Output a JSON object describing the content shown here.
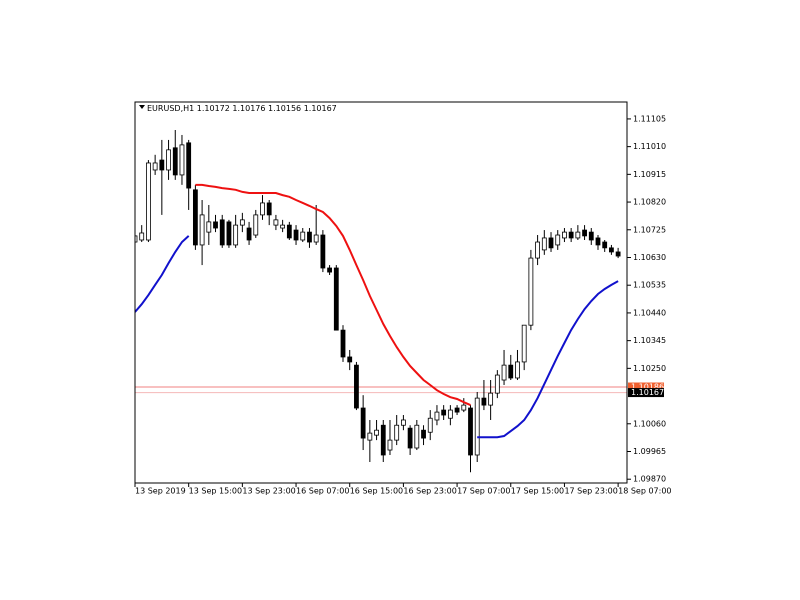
{
  "chart_data": {
    "type": "candlestick",
    "title": "EURUSD,H1",
    "header_values": [
      1.10172,
      1.10176,
      1.10156,
      1.10167
    ],
    "categories": [
      "13 Sep 2019",
      null,
      null,
      null,
      null,
      null,
      null,
      null,
      "13 Sep 15:00",
      null,
      null,
      null,
      null,
      null,
      null,
      null,
      "13 Sep 23:00",
      null,
      null,
      null,
      null,
      null,
      null,
      null,
      "16 Sep 07:00",
      null,
      null,
      null,
      null,
      null,
      null,
      null,
      "16 Sep 15:00",
      null,
      null,
      null,
      null,
      null,
      null,
      null,
      "16 Sep 23:00",
      null,
      null,
      null,
      null,
      null,
      null,
      null,
      "17 Sep 07:00",
      null,
      null,
      null,
      null,
      null,
      null,
      null,
      "17 Sep 15:00",
      null,
      null,
      null,
      null,
      null,
      null,
      null,
      "17 Sep 23:00",
      null,
      null,
      null,
      null,
      null,
      null,
      null,
      "18 Sep 07:00"
    ],
    "open": [
      1.10683,
      1.1069,
      1.1069,
      1.1093,
      1.10964,
      1.1093,
      1.11006,
      1.10913,
      1.11023,
      1.10862,
      1.10673,
      1.10717,
      1.10752,
      1.10759,
      1.10752,
      1.10673,
      1.10741,
      1.10731,
      1.10707,
      1.10776,
      1.10817,
      1.10741,
      1.10731,
      1.10741,
      1.10724,
      1.1069,
      1.10717,
      1.10683,
      1.10707,
      1.10594,
      1.10594,
      1.10381,
      1.10289,
      1.10261,
      1.10114,
      1.10004,
      1.10021,
      1.10055,
      1.0997,
      1.10004,
      1.10055,
      1.10045,
      1.09977,
      1.10038,
      1.10031,
      1.10073,
      1.10107,
      1.10079,
      1.10114,
      1.10107,
      1.10114,
      1.09953,
      1.10148,
      1.10124,
      1.10165,
      1.1021,
      1.10261,
      1.10217,
      1.10272,
      1.10398,
      1.10628,
      1.10656,
      1.10697,
      1.10673,
      1.10697,
      1.10717,
      1.10697,
      1.10724,
      1.10717,
      1.10697,
      1.10683,
      1.10663,
      1.10649
    ],
    "high": [
      1.10717,
      1.10741,
      1.10964,
      1.10982,
      1.11033,
      1.11033,
      1.11067,
      1.1105,
      1.11033,
      1.10879,
      1.10827,
      1.1081,
      1.10776,
      1.10776,
      1.10759,
      1.10776,
      1.10783,
      1.10752,
      1.10793,
      1.10844,
      1.10827,
      1.10776,
      1.10759,
      1.10752,
      1.10741,
      1.10731,
      1.10731,
      1.1081,
      1.10724,
      1.10604,
      1.10604,
      1.10398,
      1.10313,
      1.10272,
      1.10158,
      1.10073,
      1.10073,
      1.10073,
      1.10073,
      1.1009,
      1.1009,
      1.10055,
      1.10073,
      1.10055,
      1.10107,
      1.10124,
      1.10124,
      1.10124,
      1.10124,
      1.10148,
      1.10124,
      1.10169,
      1.1021,
      1.1021,
      1.10244,
      1.10313,
      1.10296,
      1.10313,
      1.10398,
      1.10656,
      1.10707,
      1.10724,
      1.10717,
      1.10724,
      1.10731,
      1.10731,
      1.10741,
      1.10741,
      1.10731,
      1.10707,
      1.1069,
      1.10673,
      1.10663
    ],
    "low": [
      1.10673,
      1.10683,
      1.10683,
      1.10913,
      1.10776,
      1.10896,
      1.10896,
      1.10879,
      1.10793,
      1.10656,
      1.10604,
      1.10673,
      1.10717,
      1.10663,
      1.10663,
      1.10663,
      1.10717,
      1.10673,
      1.10697,
      1.10759,
      1.10741,
      1.10724,
      1.10717,
      1.1069,
      1.10673,
      1.10683,
      1.10663,
      1.10673,
      1.1058,
      1.1057,
      1.10381,
      1.10272,
      1.10244,
      1.10107,
      1.0997,
      1.09929,
      1.10004,
      1.09929,
      1.09953,
      1.09987,
      1.10038,
      1.09953,
      1.0997,
      1.09987,
      1.10004,
      1.10055,
      1.10073,
      1.10055,
      1.1009,
      1.101,
      1.09894,
      1.09929,
      1.10107,
      1.10073,
      1.10148,
      1.10193,
      1.1021,
      1.1021,
      1.10244,
      1.10381,
      1.10604,
      1.10639,
      1.10649,
      1.10656,
      1.10683,
      1.10683,
      1.1069,
      1.1069,
      1.10673,
      1.10656,
      1.10649,
      1.10639,
      1.10628
    ],
    "close": [
      1.10704,
      1.10714,
      1.10954,
      1.10954,
      1.1093,
      1.10999,
      1.10913,
      1.11016,
      1.10868,
      1.10673,
      1.10776,
      1.10752,
      1.10731,
      1.10673,
      1.10673,
      1.10741,
      1.10759,
      1.1069,
      1.10776,
      1.10817,
      1.10776,
      1.10759,
      1.10741,
      1.10697,
      1.1069,
      1.10717,
      1.10683,
      1.10707,
      1.10594,
      1.1058,
      1.10381,
      1.10289,
      1.10272,
      1.10114,
      1.10011,
      1.10028,
      1.10038,
      1.09953,
      1.10004,
      1.10055,
      1.10073,
      1.09977,
      1.10055,
      1.10011,
      1.10079,
      1.101,
      1.1009,
      1.10107,
      1.101,
      1.10124,
      1.09953,
      1.10148,
      1.10124,
      1.10165,
      1.10227,
      1.10261,
      1.10217,
      1.10272,
      1.10398,
      1.10628,
      1.10683,
      1.10697,
      1.10663,
      1.10707,
      1.10717,
      1.10697,
      1.10717,
      1.10704,
      1.1069,
      1.10673,
      1.10663,
      1.10649,
      1.10635
    ],
    "lines": [
      {
        "color": "#ee1111",
        "values": [
          null,
          null,
          null,
          null,
          null,
          null,
          null,
          null,
          null,
          1.10879,
          1.10879,
          1.10875,
          1.10872,
          1.10868,
          1.10865,
          1.10862,
          1.10855,
          1.10851,
          1.10851,
          1.10851,
          1.10851,
          1.10851,
          1.10844,
          1.10838,
          1.10827,
          1.10817,
          1.10807,
          1.10796,
          1.10786,
          1.10765,
          1.10738,
          1.10704,
          1.10656,
          1.10604,
          1.10553,
          1.10498,
          1.1045,
          1.10402,
          1.10361,
          1.10323,
          1.10289,
          1.10258,
          1.10234,
          1.1021,
          1.10193,
          1.10175,
          1.10162,
          1.10151,
          1.10145,
          1.10134,
          1.10124,
          null,
          null,
          null,
          null,
          null,
          null,
          null,
          null,
          null,
          null,
          null,
          null,
          null,
          null,
          null,
          null,
          null,
          null,
          null,
          null,
          null,
          null
        ]
      },
      {
        "color": "#1111cc",
        "values": [
          1.10443,
          1.1047,
          1.10501,
          1.10536,
          1.1057,
          1.10611,
          1.10649,
          1.10683,
          1.10704,
          null,
          null,
          null,
          null,
          null,
          null,
          null,
          null,
          null,
          null,
          null,
          null,
          null,
          null,
          null,
          null,
          null,
          null,
          null,
          null,
          null,
          null,
          null,
          null,
          null,
          null,
          null,
          null,
          null,
          null,
          null,
          null,
          null,
          null,
          null,
          null,
          null,
          null,
          null,
          null,
          null,
          null,
          1.10014,
          1.10014,
          1.10014,
          1.10014,
          1.10018,
          1.10035,
          1.10052,
          1.10073,
          1.10107,
          1.10148,
          1.10196,
          1.10244,
          1.10292,
          1.10337,
          1.10381,
          1.10419,
          1.10453,
          1.10481,
          1.10505,
          1.10522,
          1.10536,
          1.10549
        ]
      }
    ],
    "price_lines": [
      {
        "value": 1.10186,
        "color": "#f0602f"
      },
      {
        "value": 1.10167,
        "color": "#000000"
      }
    ],
    "ylim": [
      1.09857,
      1.11163
    ],
    "yticks": [
      1.11105,
      {
        "value": 1.1101,
        "label": "1.11010"
      },
      1.10915,
      {
        "value": 1.1082,
        "label": "1.10820"
      },
      1.10725,
      {
        "value": 1.1063,
        "label": "1.10630"
      },
      1.10535,
      {
        "value": 1.1044,
        "label": "1.10440"
      },
      1.10345,
      {
        "value": 1.1025,
        "label": "1.10250"
      },
      {
        "value": 1.1006,
        "label": "1.10060"
      },
      1.09965,
      {
        "value": 1.0987,
        "label": "1.09870"
      }
    ]
  }
}
